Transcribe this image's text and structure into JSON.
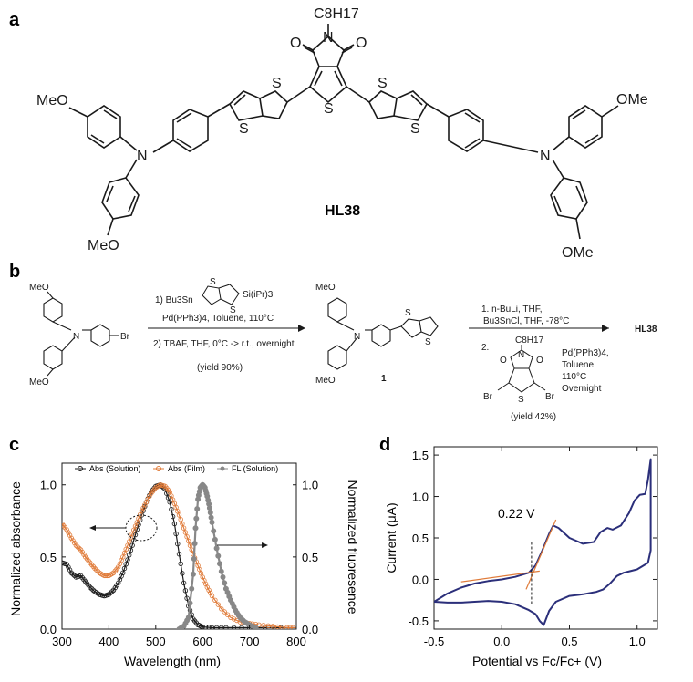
{
  "panels": {
    "a": {
      "label": "a",
      "compound_name": "HL38",
      "atoms": {
        "alkyl": "C8H17",
        "n": "N",
        "o1": "O",
        "o2": "O",
        "s_thiophene_core": "S",
        "s_tt_left_top": "S",
        "s_tt_left_bottom": "S",
        "s_tt_right_top": "S",
        "s_tt_right_bottom": "S",
        "n_left": "N",
        "n_right": "N",
        "meo_left_top": "MeO",
        "meo_left_bottom": "MeO",
        "ome_right_top": "OMe",
        "ome_right_bottom": "OMe"
      }
    },
    "b": {
      "label": "b",
      "step1": {
        "reagent_line1": "1) Bu3Sn",
        "reagent_si": "Si(iPr)3",
        "reagent_s1": "S",
        "reagent_s2": "S",
        "reagent_line2": "Pd(PPh3)4, Toluene, 110°C",
        "reagent_line3": "2) TBAF, THF, 0°C -> r.t., overnight",
        "yield": "(yield 90%)"
      },
      "start_material": {
        "meo_top": "MeO",
        "meo_bottom": "MeO",
        "n": "N",
        "br": "Br"
      },
      "intermediate": {
        "label": "1",
        "meo_top": "MeO",
        "meo_bottom": "MeO",
        "n": "N",
        "s1": "S",
        "s2": "S"
      },
      "step2": {
        "line1": "1. n-BuLi, THF,",
        "line2": "Bu3SnCl, THF, -78°C",
        "line3": "2.",
        "alkyl": "C8H17",
        "n": "N",
        "o1": "O",
        "o2": "O",
        "br1": "Br",
        "br2": "Br",
        "s": "S",
        "cond1": "Pd(PPh3)4,",
        "cond2": "Toluene",
        "cond3": "110°C",
        "cond4": "Overnight",
        "yield": "(yield 42%)"
      },
      "product": "HL38"
    },
    "c": {
      "label": "c",
      "legend": [
        "Abs (Solution)",
        "Abs (Film)",
        "FL (Solution)"
      ],
      "ylabel_left": "Normalized absorbance",
      "ylabel_right": "Normalized fluoresence",
      "xlabel": "Wavelength (nm)",
      "xticks": [
        "300",
        "400",
        "500",
        "600",
        "700",
        "800"
      ],
      "yticks_left": [
        "0.0",
        "0.5",
        "1.0"
      ],
      "yticks_right": [
        "0.0",
        "0.5",
        "1.0"
      ]
    },
    "d": {
      "label": "d",
      "annotation": "0.22 V",
      "xlabel": "Potential vs Fc/Fc+ (V)",
      "ylabel": "Current (μA)",
      "xticks": [
        "-0.5",
        "0.0",
        "0.5",
        "1.0"
      ],
      "yticks": [
        "-0.5",
        "0.0",
        "0.5",
        "1.0",
        "1.5"
      ]
    }
  },
  "colors": {
    "abs_solution": "#1a1a1a",
    "abs_film": "#e07b39",
    "fl_solution": "#888888",
    "cv_curve": "#2b2f7a",
    "tangent": "#e07b39"
  },
  "chart_data": [
    {
      "type": "line",
      "panel": "c",
      "xlabel": "Wavelength (nm)",
      "ylabel": "Normalized absorbance",
      "ylabel_right": "Normalized fluoresence",
      "xlim": [
        300,
        800
      ],
      "ylim": [
        0,
        1.15
      ],
      "series": [
        {
          "name": "Abs (Solution)",
          "x": [
            300,
            310,
            320,
            330,
            340,
            350,
            360,
            370,
            380,
            390,
            400,
            410,
            420,
            430,
            440,
            450,
            460,
            470,
            480,
            490,
            500,
            510,
            520,
            530,
            540,
            550,
            560,
            570,
            580,
            590,
            600,
            620,
            650,
            700,
            800
          ],
          "y": [
            0.46,
            0.45,
            0.39,
            0.36,
            0.37,
            0.33,
            0.29,
            0.26,
            0.24,
            0.23,
            0.24,
            0.27,
            0.32,
            0.39,
            0.48,
            0.58,
            0.69,
            0.79,
            0.88,
            0.95,
            0.99,
            1.0,
            0.97,
            0.88,
            0.73,
            0.52,
            0.32,
            0.16,
            0.07,
            0.03,
            0.015,
            0.01,
            0.01,
            0.01,
            0.01
          ]
        },
        {
          "name": "Abs (Film)",
          "x": [
            300,
            310,
            320,
            330,
            340,
            350,
            360,
            370,
            380,
            390,
            400,
            410,
            420,
            430,
            440,
            450,
            460,
            470,
            480,
            490,
            500,
            510,
            520,
            530,
            540,
            550,
            560,
            570,
            580,
            590,
            600,
            610,
            620,
            640,
            660,
            680,
            700,
            720,
            750,
            780,
            800
          ],
          "y": [
            0.73,
            0.69,
            0.63,
            0.58,
            0.55,
            0.5,
            0.46,
            0.42,
            0.39,
            0.37,
            0.37,
            0.39,
            0.43,
            0.5,
            0.58,
            0.66,
            0.74,
            0.82,
            0.88,
            0.94,
            0.98,
            1.0,
            0.99,
            0.95,
            0.87,
            0.79,
            0.7,
            0.61,
            0.52,
            0.44,
            0.36,
            0.29,
            0.23,
            0.14,
            0.08,
            0.05,
            0.04,
            0.03,
            0.02,
            0.01,
            0.01
          ]
        },
        {
          "name": "FL (Solution)",
          "x": [
            550,
            560,
            570,
            580,
            585,
            590,
            595,
            600,
            605,
            610,
            615,
            620,
            630,
            640,
            650,
            660,
            670,
            680,
            690,
            700,
            720
          ],
          "y": [
            0.0,
            0.02,
            0.08,
            0.38,
            0.7,
            0.9,
            0.98,
            1.0,
            0.98,
            0.92,
            0.84,
            0.74,
            0.56,
            0.4,
            0.28,
            0.2,
            0.13,
            0.08,
            0.05,
            0.03,
            0.0
          ]
        }
      ]
    },
    {
      "type": "line",
      "panel": "d",
      "xlabel": "Potential vs Fc/Fc+ (V)",
      "ylabel": "Current (μA)",
      "xlim": [
        -0.5,
        1.15
      ],
      "ylim": [
        -0.6,
        1.6
      ],
      "onset_potential": 0.22,
      "series": [
        {
          "name": "CV",
          "x": [
            -0.5,
            -0.4,
            -0.3,
            -0.2,
            -0.1,
            0.0,
            0.1,
            0.2,
            0.25,
            0.3,
            0.35,
            0.38,
            0.42,
            0.5,
            0.6,
            0.68,
            0.73,
            0.78,
            0.82,
            0.88,
            0.94,
            0.98,
            1.02,
            1.06,
            1.08,
            1.1,
            1.1,
            1.08,
            1.05,
            1.0,
            0.95,
            0.9,
            0.85,
            0.8,
            0.75,
            0.7,
            0.6,
            0.5,
            0.4,
            0.35,
            0.31,
            0.28,
            0.25,
            0.2,
            0.1,
            0.0,
            -0.1,
            -0.2,
            -0.3,
            -0.4,
            -0.5
          ],
          "y": [
            -0.27,
            -0.17,
            -0.1,
            -0.05,
            -0.02,
            0.0,
            0.03,
            0.08,
            0.17,
            0.35,
            0.55,
            0.65,
            0.62,
            0.5,
            0.43,
            0.45,
            0.57,
            0.62,
            0.6,
            0.65,
            0.8,
            0.95,
            1.02,
            1.03,
            1.2,
            1.45,
            0.35,
            0.2,
            0.17,
            0.12,
            0.1,
            0.08,
            0.04,
            -0.05,
            -0.12,
            -0.15,
            -0.18,
            -0.2,
            -0.27,
            -0.38,
            -0.55,
            -0.5,
            -0.42,
            -0.37,
            -0.3,
            -0.27,
            -0.26,
            -0.27,
            -0.28,
            -0.28,
            -0.27
          ]
        }
      ]
    }
  ]
}
